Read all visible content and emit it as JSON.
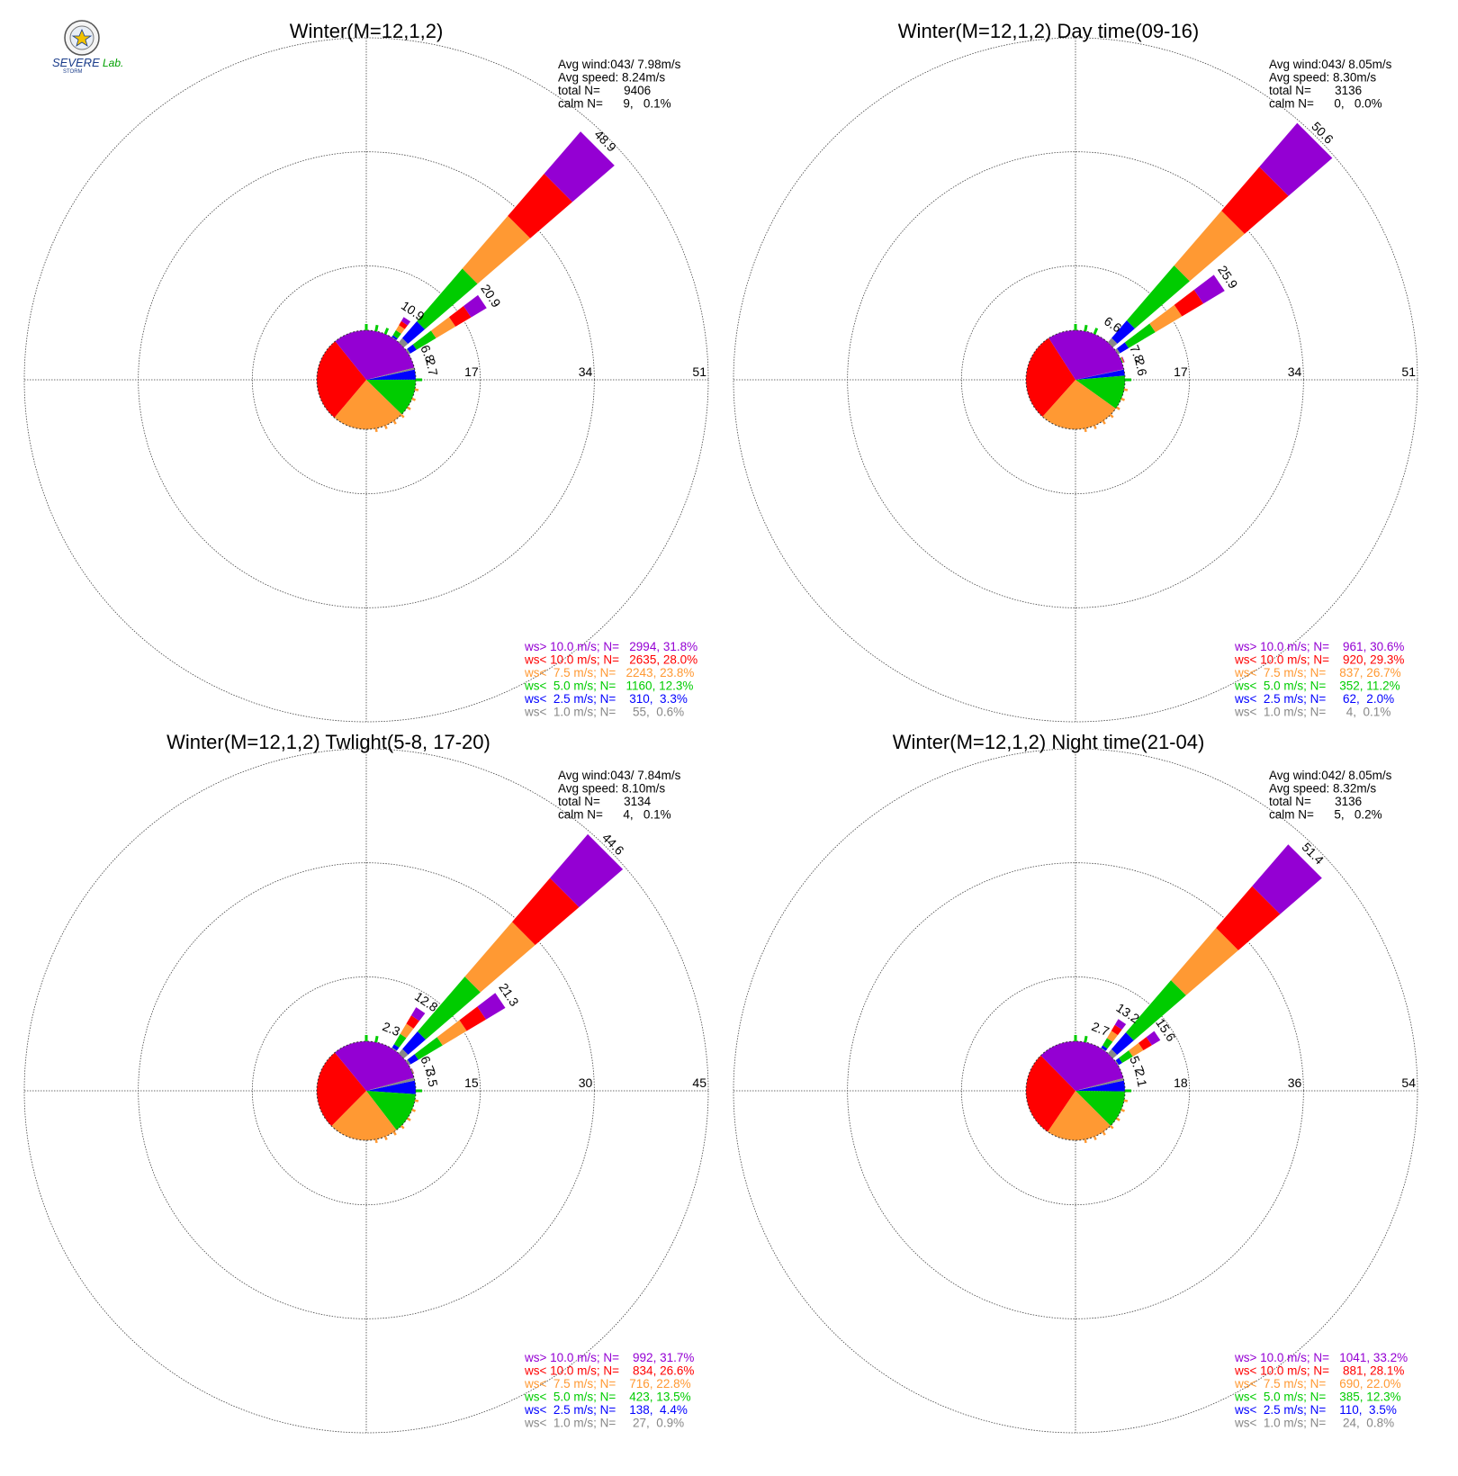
{
  "colors": {
    "gt10": "#9400d3",
    "lt10": "#ff0000",
    "lt7_5": "#ff9933",
    "lt5": "#00cc00",
    "lt2_5": "#0000ff",
    "lt1": "#888888"
  },
  "logo": {
    "text_severe": "SEVERE",
    "text_storm": "STORM",
    "text_lab": "Lab."
  },
  "chart_data": [
    {
      "type": "wind-rose",
      "title": "Winter(M=12,1,2)",
      "info": [
        "Avg wind:043/ 7.98m/s",
        "Avg speed: 8.24m/s",
        "total N=       9406",
        "calm N=      9,   0.1%"
      ],
      "ring_labels": [
        "17",
        "34",
        "51"
      ],
      "rmax": 51,
      "bar_labels": [
        {
          "dir": 45,
          "value": 48.9,
          "text": "48.9"
        },
        {
          "dir": 56,
          "value": 20.9,
          "text": "20.9"
        },
        {
          "dir": 34,
          "value": 10.9,
          "text": "10.9"
        },
        {
          "dir": 67,
          "value": 6.8,
          "text": "6.8"
        },
        {
          "dir": 79,
          "value": 2.7,
          "text": "2.7"
        }
      ],
      "class_fractions": [
        0.006,
        0.033,
        0.123,
        0.238,
        0.28,
        0.318
      ],
      "legend": [
        {
          "label": "ws> 10.0 m/s; N=   2994, 31.8%",
          "color": "#9400d3"
        },
        {
          "label": "ws< 10.0 m/s; N=   2635, 28.0%",
          "color": "#ff0000"
        },
        {
          "label": "ws<  7.5 m/s; N=   2243, 23.8%",
          "color": "#ff9933"
        },
        {
          "label": "ws<  5.0 m/s; N=   1160, 12.3%",
          "color": "#00cc00"
        },
        {
          "label": "ws<  2.5 m/s; N=    310,  3.3%",
          "color": "#0000ff"
        },
        {
          "label": "ws<  1.0 m/s; N=     55,  0.6%",
          "color": "#888888"
        }
      ]
    },
    {
      "type": "wind-rose",
      "title": "Winter(M=12,1,2) Day time(09-16)",
      "info": [
        "Avg wind:043/ 8.05m/s",
        "Avg speed: 8.30m/s",
        "total N=       3136",
        "calm N=      0,   0.0%"
      ],
      "ring_labels": [
        "17",
        "34",
        "51"
      ],
      "rmax": 51,
      "bar_labels": [
        {
          "dir": 45,
          "value": 50.6,
          "text": "50.6"
        },
        {
          "dir": 56,
          "value": 25.9,
          "text": "25.9"
        },
        {
          "dir": 34,
          "value": 6.6,
          "text": "6.6"
        },
        {
          "dir": 67,
          "value": 7.8,
          "text": "7.8"
        },
        {
          "dir": 79,
          "value": 2.6,
          "text": "2.6"
        }
      ],
      "class_fractions": [
        0.001,
        0.02,
        0.112,
        0.267,
        0.293,
        0.306
      ],
      "legend": [
        {
          "label": "ws> 10.0 m/s; N=    961, 30.6%",
          "color": "#9400d3"
        },
        {
          "label": "ws< 10.0 m/s; N=    920, 29.3%",
          "color": "#ff0000"
        },
        {
          "label": "ws<  7.5 m/s; N=    837, 26.7%",
          "color": "#ff9933"
        },
        {
          "label": "ws<  5.0 m/s; N=    352, 11.2%",
          "color": "#00cc00"
        },
        {
          "label": "ws<  2.5 m/s; N=     62,  2.0%",
          "color": "#0000ff"
        },
        {
          "label": "ws<  1.0 m/s; N=      4,  0.1%",
          "color": "#888888"
        }
      ]
    },
    {
      "type": "wind-rose",
      "title": "Winter(M=12,1,2) Twlight(5-8, 17-20)",
      "info": [
        "Avg wind:043/ 7.84m/s",
        "Avg speed: 8.10m/s",
        "total N=       3134",
        "calm N=      4,   0.1%"
      ],
      "ring_labels": [
        "15",
        "30",
        "45"
      ],
      "rmax": 45,
      "bar_labels": [
        {
          "dir": 45,
          "value": 44.6,
          "text": "44.6"
        },
        {
          "dir": 56,
          "value": 21.3,
          "text": "21.3"
        },
        {
          "dir": 34,
          "value": 12.8,
          "text": "12.8"
        },
        {
          "dir": 22,
          "value": 2.3,
          "text": "2.3"
        },
        {
          "dir": 67,
          "value": 6.7,
          "text": "6.7"
        },
        {
          "dir": 79,
          "value": 3.5,
          "text": "3.5"
        }
      ],
      "class_fractions": [
        0.009,
        0.044,
        0.135,
        0.228,
        0.266,
        0.317
      ],
      "legend": [
        {
          "label": "ws> 10.0 m/s; N=    992, 31.7%",
          "color": "#9400d3"
        },
        {
          "label": "ws< 10.0 m/s; N=    834, 26.6%",
          "color": "#ff0000"
        },
        {
          "label": "ws<  7.5 m/s; N=    716, 22.8%",
          "color": "#ff9933"
        },
        {
          "label": "ws<  5.0 m/s; N=    423, 13.5%",
          "color": "#00cc00"
        },
        {
          "label": "ws<  2.5 m/s; N=    138,  4.4%",
          "color": "#0000ff"
        },
        {
          "label": "ws<  1.0 m/s; N=     27,  0.9%",
          "color": "#888888"
        }
      ]
    },
    {
      "type": "wind-rose",
      "title": "Winter(M=12,1,2) Night time(21-04)",
      "info": [
        "Avg wind:042/ 8.05m/s",
        "Avg speed: 8.32m/s",
        "total N=       3136",
        "calm N=      5,   0.2%"
      ],
      "ring_labels": [
        "18",
        "36",
        "54"
      ],
      "rmax": 54,
      "bar_labels": [
        {
          "dir": 45,
          "value": 51.4,
          "text": "51.4"
        },
        {
          "dir": 56,
          "value": 15.6,
          "text": "15.6"
        },
        {
          "dir": 34,
          "value": 13.2,
          "text": "13.2"
        },
        {
          "dir": 22,
          "value": 2.7,
          "text": "2.7"
        },
        {
          "dir": 67,
          "value": 5.7,
          "text": "5.7"
        },
        {
          "dir": 79,
          "value": 2.1,
          "text": "2.1"
        }
      ],
      "class_fractions": [
        0.008,
        0.035,
        0.123,
        0.22,
        0.281,
        0.332
      ],
      "legend": [
        {
          "label": "ws> 10.0 m/s; N=   1041, 33.2%",
          "color": "#9400d3"
        },
        {
          "label": "ws< 10.0 m/s; N=    881, 28.1%",
          "color": "#ff0000"
        },
        {
          "label": "ws<  7.5 m/s; N=    690, 22.0%",
          "color": "#ff9933"
        },
        {
          "label": "ws<  5.0 m/s; N=    385, 12.3%",
          "color": "#00cc00"
        },
        {
          "label": "ws<  2.5 m/s; N=    110,  3.5%",
          "color": "#0000ff"
        },
        {
          "label": "ws<  1.0 m/s; N=     24,  0.8%",
          "color": "#888888"
        }
      ]
    }
  ]
}
